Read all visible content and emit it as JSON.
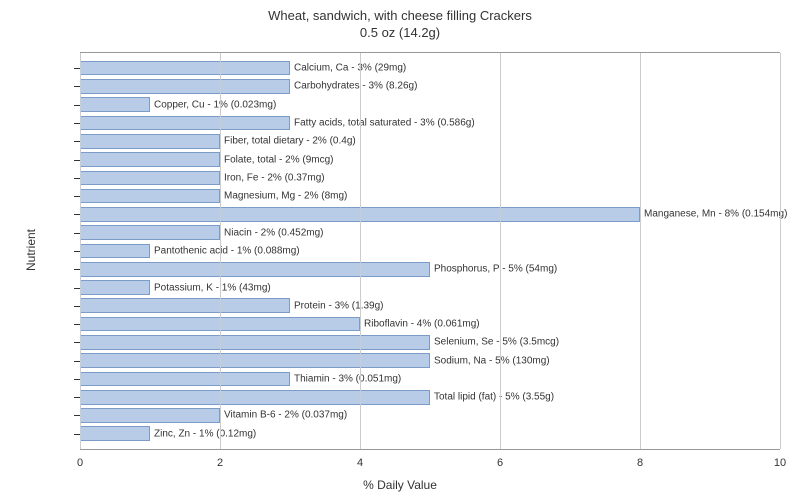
{
  "title_line1": "Wheat, sandwich, with cheese filling Crackers",
  "title_line2": "0.5 oz (14.2g)",
  "y_axis_label": "Nutrient",
  "x_axis_label": "% Daily Value",
  "chart": {
    "type": "bar-horizontal",
    "xlim_min": 0,
    "xlim_max": 10,
    "xtick_step": 2,
    "bar_fill_color": "#b8cce8",
    "bar_border_color": "#7a9cc6",
    "grid_color": "#cccccc",
    "axis_color": "#999999",
    "background_color": "#ffffff",
    "label_fontsize": 10,
    "axis_fontsize": 12,
    "title_fontsize": 13,
    "bars": [
      {
        "label": "Calcium, Ca - 3% (29mg)",
        "value": 3
      },
      {
        "label": "Carbohydrates - 3% (8.26g)",
        "value": 3
      },
      {
        "label": "Copper, Cu - 1% (0.023mg)",
        "value": 1
      },
      {
        "label": "Fatty acids, total saturated - 3% (0.586g)",
        "value": 3
      },
      {
        "label": "Fiber, total dietary - 2% (0.4g)",
        "value": 2
      },
      {
        "label": "Folate, total - 2% (9mcg)",
        "value": 2
      },
      {
        "label": "Iron, Fe - 2% (0.37mg)",
        "value": 2
      },
      {
        "label": "Magnesium, Mg - 2% (8mg)",
        "value": 2
      },
      {
        "label": "Manganese, Mn - 8% (0.154mg)",
        "value": 8
      },
      {
        "label": "Niacin - 2% (0.452mg)",
        "value": 2
      },
      {
        "label": "Pantothenic acid - 1% (0.088mg)",
        "value": 1
      },
      {
        "label": "Phosphorus, P - 5% (54mg)",
        "value": 5
      },
      {
        "label": "Potassium, K - 1% (43mg)",
        "value": 1
      },
      {
        "label": "Protein - 3% (1.39g)",
        "value": 3
      },
      {
        "label": "Riboflavin - 4% (0.061mg)",
        "value": 4
      },
      {
        "label": "Selenium, Se - 5% (3.5mcg)",
        "value": 5
      },
      {
        "label": "Sodium, Na - 5% (130mg)",
        "value": 5
      },
      {
        "label": "Thiamin - 3% (0.051mg)",
        "value": 3
      },
      {
        "label": "Total lipid (fat) - 5% (3.55g)",
        "value": 5
      },
      {
        "label": "Vitamin B-6 - 2% (0.037mg)",
        "value": 2
      },
      {
        "label": "Zinc, Zn - 1% (0.12mg)",
        "value": 1
      }
    ]
  },
  "x_ticks": [
    {
      "value": 0,
      "label": "0"
    },
    {
      "value": 2,
      "label": "2"
    },
    {
      "value": 4,
      "label": "4"
    },
    {
      "value": 6,
      "label": "6"
    },
    {
      "value": 8,
      "label": "8"
    },
    {
      "value": 10,
      "label": "10"
    }
  ]
}
